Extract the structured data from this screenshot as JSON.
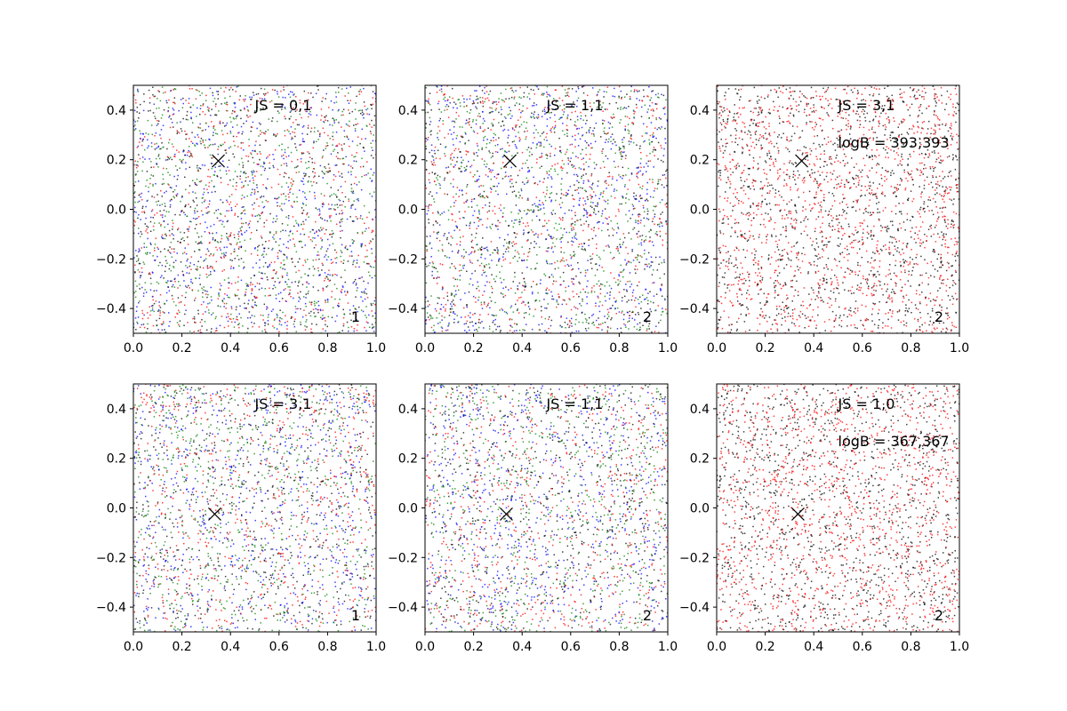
{
  "chart_data": [
    {
      "type": "scatter",
      "xlim": [
        0.0,
        1.0
      ],
      "ylim": [
        -0.5,
        0.5
      ],
      "xticks": [
        "0.0",
        "0.2",
        "0.4",
        "0.6",
        "0.8",
        "1.0"
      ],
      "yticks": [
        "−0.4",
        "−0.2",
        "0.0",
        "0.2",
        "0.4"
      ],
      "series_colors": [
        "#ff0000",
        "#008000",
        "#0000ff",
        "#000000"
      ],
      "marker": {
        "x": 0.35,
        "y": 0.195
      },
      "annotations": {
        "js": "JS = 0,1",
        "logb": "",
        "corner": "1"
      }
    },
    {
      "type": "scatter",
      "xlim": [
        0.0,
        1.0
      ],
      "ylim": [
        -0.5,
        0.5
      ],
      "xticks": [
        "0.0",
        "0.2",
        "0.4",
        "0.6",
        "0.8",
        "1.0"
      ],
      "yticks": [
        "−0.4",
        "−0.2",
        "0.0",
        "0.2",
        "0.4"
      ],
      "series_colors": [
        "#ff0000",
        "#008000",
        "#0000ff",
        "#000000"
      ],
      "marker": {
        "x": 0.35,
        "y": 0.195
      },
      "annotations": {
        "js": "JS = 1,1",
        "logb": "",
        "corner": "2"
      }
    },
    {
      "type": "scatter",
      "xlim": [
        0.0,
        1.0
      ],
      "ylim": [
        -0.5,
        0.5
      ],
      "xticks": [
        "0.0",
        "0.2",
        "0.4",
        "0.6",
        "0.8",
        "1.0"
      ],
      "yticks": [
        "−0.4",
        "−0.2",
        "0.0",
        "0.2",
        "0.4"
      ],
      "series_colors": [
        "#ff0000",
        "#000000"
      ],
      "marker": {
        "x": 0.35,
        "y": 0.195
      },
      "annotations": {
        "js": "JS = 3,1",
        "logb": "logB = 393,393",
        "corner": "2"
      }
    },
    {
      "type": "scatter",
      "xlim": [
        0.0,
        1.0
      ],
      "ylim": [
        -0.5,
        0.5
      ],
      "xticks": [
        "0.0",
        "0.2",
        "0.4",
        "0.6",
        "0.8",
        "1.0"
      ],
      "yticks": [
        "−0.4",
        "−0.2",
        "0.0",
        "0.2",
        "0.4"
      ],
      "series_colors": [
        "#ff0000",
        "#008000",
        "#0000ff",
        "#000000"
      ],
      "marker": {
        "x": 0.335,
        "y": -0.025
      },
      "annotations": {
        "js": "JS = 3,1",
        "logb": "",
        "corner": "1"
      }
    },
    {
      "type": "scatter",
      "xlim": [
        0.0,
        1.0
      ],
      "ylim": [
        -0.5,
        0.5
      ],
      "xticks": [
        "0.0",
        "0.2",
        "0.4",
        "0.6",
        "0.8",
        "1.0"
      ],
      "yticks": [
        "−0.4",
        "−0.2",
        "0.0",
        "0.2",
        "0.4"
      ],
      "series_colors": [
        "#ff0000",
        "#008000",
        "#0000ff",
        "#000000"
      ],
      "marker": {
        "x": 0.335,
        "y": -0.025
      },
      "annotations": {
        "js": "JS = 1,1",
        "logb": "",
        "corner": "2"
      }
    },
    {
      "type": "scatter",
      "xlim": [
        0.0,
        1.0
      ],
      "ylim": [
        -0.5,
        0.5
      ],
      "xticks": [
        "0.0",
        "0.2",
        "0.4",
        "0.6",
        "0.8",
        "1.0"
      ],
      "yticks": [
        "−0.4",
        "−0.2",
        "0.0",
        "0.2",
        "0.4"
      ],
      "series_colors": [
        "#ff0000",
        "#000000"
      ],
      "marker": {
        "x": 0.335,
        "y": -0.025
      },
      "annotations": {
        "js": "JS = 1,0",
        "logb": "logB = 367,367",
        "corner": "2"
      }
    }
  ]
}
